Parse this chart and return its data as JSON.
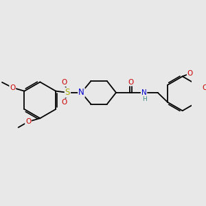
{
  "background_color": "#e8e8e8",
  "bond_color": "#000000",
  "bond_width": 1.3,
  "atom_colors": {
    "C": "#000000",
    "N": "#0000cc",
    "O": "#cc0000",
    "S": "#aaaa00",
    "H": "#448888"
  },
  "font_size_large": 7.5,
  "font_size_small": 6.5
}
